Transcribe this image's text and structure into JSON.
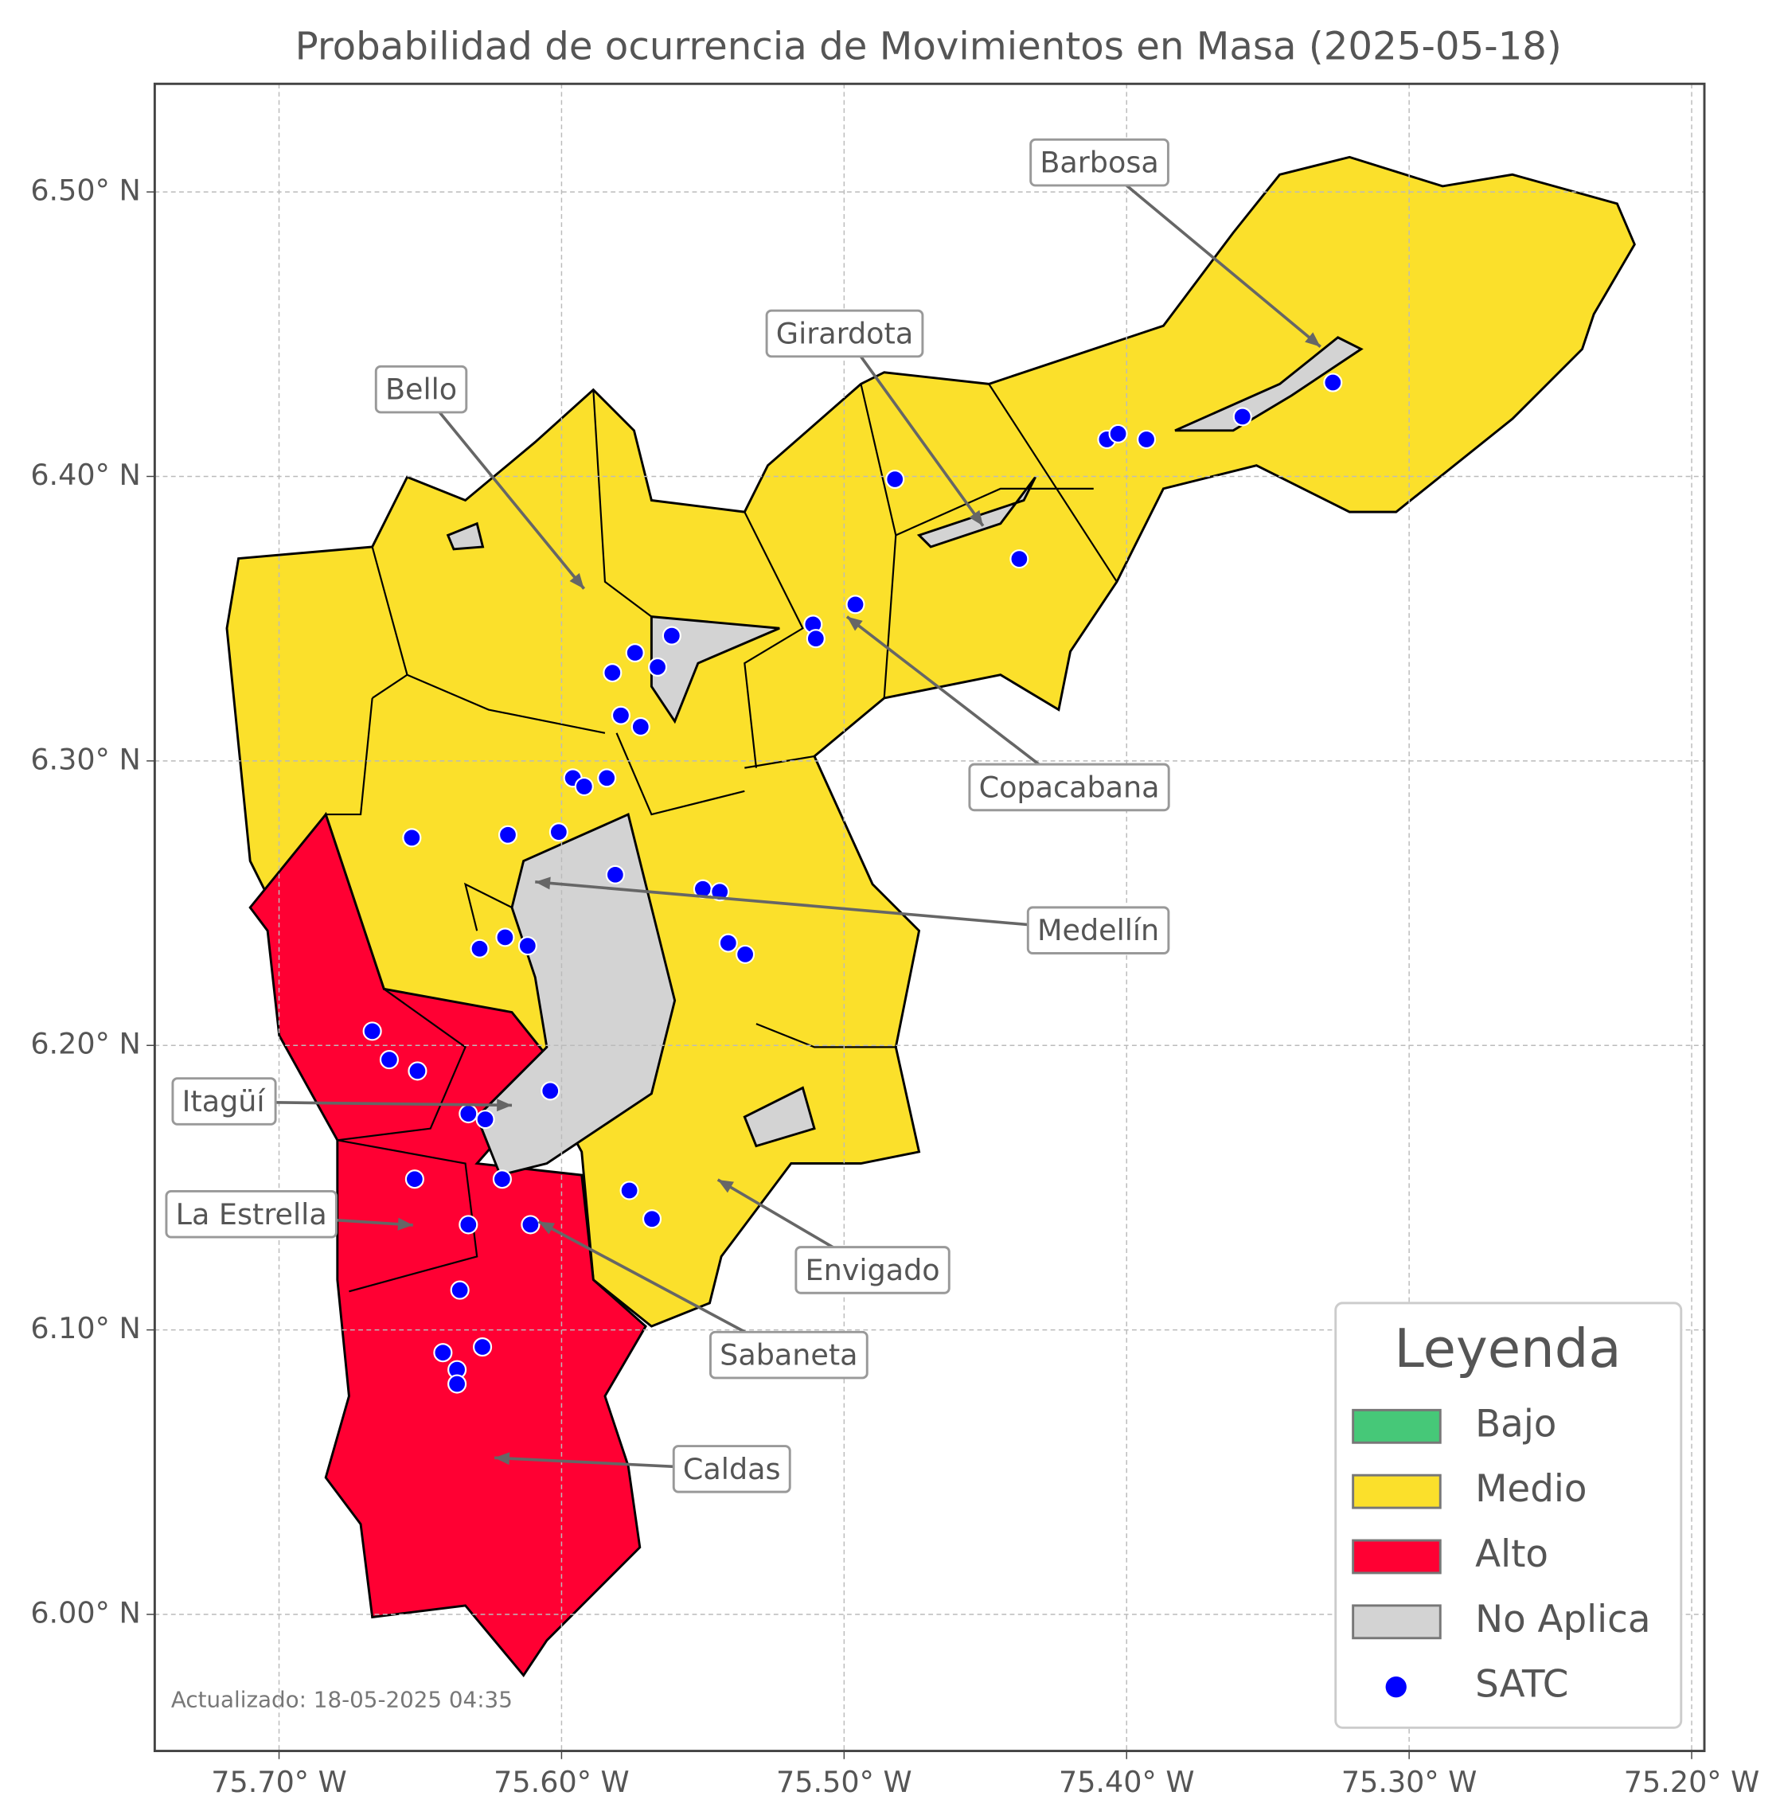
{
  "chart_data": {
    "type": "map",
    "title": "Probabilidad de ocurrencia de Movimientos en Masa (2025-05-18)",
    "xlim": [
      -75.744,
      -75.1955
    ],
    "ylim": [
      5.952,
      6.538
    ],
    "xticks": [
      {
        "value": -75.7,
        "label": "75.70° W"
      },
      {
        "value": -75.6,
        "label": "75.60° W"
      },
      {
        "value": -75.5,
        "label": "75.50° W"
      },
      {
        "value": -75.4,
        "label": "75.40° W"
      },
      {
        "value": -75.3,
        "label": "75.30° W"
      },
      {
        "value": -75.2,
        "label": "75.20° W"
      }
    ],
    "yticks": [
      {
        "value": 6.0,
        "label": "6.00° N"
      },
      {
        "value": 6.1,
        "label": "6.10° N"
      },
      {
        "value": 6.2,
        "label": "6.20° N"
      },
      {
        "value": 6.3,
        "label": "6.30° N"
      },
      {
        "value": 6.4,
        "label": "6.40° N"
      },
      {
        "value": 6.5,
        "label": "6.50° N"
      }
    ],
    "grid": true,
    "legend": {
      "title": "Leyenda",
      "position": "lower right",
      "items": [
        {
          "name": "Bajo",
          "color": "#46c878"
        },
        {
          "name": "Medio",
          "color": "#fbe02b"
        },
        {
          "name": "Alto",
          "color": "#ff0033"
        },
        {
          "name": "No Aplica",
          "color": "#d3d3d3"
        }
      ]
    },
    "series": [
      {
        "name": "SATC",
        "color": "#0000ff",
        "x": [
          -75.653,
          -75.619,
          -75.601,
          -75.596,
          -75.592,
          -75.584,
          -75.579,
          -75.572,
          -75.582,
          -75.574,
          -75.566,
          -75.561,
          -75.581,
          -75.55,
          -75.544,
          -75.541,
          -75.535,
          -75.629,
          -75.62,
          -75.612,
          -75.667,
          -75.661,
          -75.651,
          -75.604,
          -75.633,
          -75.627,
          -75.652,
          -75.621,
          -75.576,
          -75.568,
          -75.633,
          -75.611,
          -75.636,
          -75.642,
          -75.628,
          -75.637,
          -75.637,
          -75.511,
          -75.51,
          -75.496,
          -75.482,
          -75.438,
          -75.407,
          -75.403,
          -75.393,
          -75.359,
          -75.327
        ],
        "y": [
          6.273,
          6.274,
          6.275,
          6.294,
          6.291,
          6.294,
          6.316,
          6.312,
          6.331,
          6.338,
          6.333,
          6.344,
          6.26,
          6.255,
          6.254,
          6.236,
          6.232,
          6.234,
          6.238,
          6.235,
          6.205,
          6.195,
          6.191,
          6.184,
          6.176,
          6.174,
          6.153,
          6.153,
          6.149,
          6.139,
          6.137,
          6.137,
          6.114,
          6.092,
          6.094,
          6.086,
          6.081,
          6.348,
          6.343,
          6.355,
          6.399,
          6.371,
          6.413,
          6.415,
          6.413,
          6.421,
          6.433
        ]
      }
    ],
    "annotations": [
      "Barbosa",
      "Girardota",
      "Bello",
      "Copacabana",
      "Medellín",
      "Itagüí",
      "La Estrella",
      "Envigado",
      "Sabaneta",
      "Caldas"
    ],
    "footnote": "Actualizado: 18-05-2025 04:35"
  }
}
